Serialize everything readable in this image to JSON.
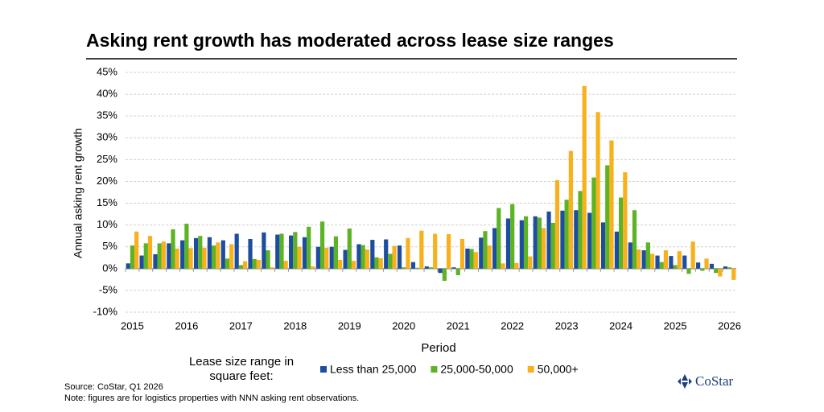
{
  "chart_data": {
    "type": "bar",
    "title": "Asking rent growth has moderated across lease size ranges",
    "y_label": "Annual asking rent growth",
    "x_label": "Period",
    "legend_title": [
      "Lease size range in",
      "square feet:"
    ],
    "source": "Source: CoStar, Q1 2026",
    "note": "Note: figures are for logistics properties with NNN asking rent observations.",
    "logo": "CoStar",
    "categories": [
      "2015",
      null,
      null,
      null,
      "2016",
      null,
      null,
      null,
      "2017",
      null,
      null,
      null,
      "2018",
      null,
      null,
      null,
      "2019",
      null,
      null,
      null,
      "2020",
      null,
      null,
      null,
      "2021",
      null,
      null,
      null,
      "2022",
      null,
      null,
      null,
      "2023",
      null,
      null,
      null,
      "2024",
      null,
      null,
      null,
      "2025",
      null,
      null,
      null,
      "2026"
    ],
    "series": [
      {
        "name": "Less than 25,000",
        "color": "#1d4d9e",
        "values": [
          1.2,
          3,
          3.3,
          5.8,
          6.5,
          7,
          7.2,
          6.5,
          8,
          6.8,
          8.3,
          7.8,
          7.6,
          7.2,
          5,
          5,
          4.3,
          5.6,
          6.6,
          6.7,
          5.3,
          1.5,
          0.5,
          -1,
          0.3,
          4.6,
          7.1,
          9.3,
          11.5,
          11.1,
          12,
          13.1,
          13.3,
          13.4,
          12.8,
          10.6,
          8.5,
          6,
          4.2,
          3,
          2.9,
          3,
          1.4,
          1.1,
          0.5
        ]
      },
      {
        "name": "25,000-50,000",
        "color": "#5cb324",
        "values": [
          5.3,
          5.8,
          5.8,
          9,
          10.3,
          7.5,
          5.3,
          2.3,
          0.8,
          2.2,
          4.2,
          8,
          8.4,
          9.6,
          10.8,
          7.4,
          9.2,
          5.4,
          2.6,
          3.4,
          0.3,
          0.2,
          0.3,
          -2.8,
          -1.5,
          4.5,
          8.6,
          13.9,
          14.8,
          12,
          11.7,
          10.5,
          15.8,
          17.8,
          20.9,
          23.7,
          16.3,
          13.4,
          6,
          1.5,
          0.8,
          -1.2,
          -0.5,
          -1,
          0.3
        ]
      },
      {
        "name": "50,000+",
        "color": "#f8b11c",
        "values": [
          8.5,
          7.5,
          6.2,
          4.6,
          4.7,
          4.8,
          6,
          5.6,
          1.7,
          2,
          0.3,
          1.8,
          5,
          0.5,
          4.8,
          2,
          1.8,
          4.4,
          2.4,
          5.2,
          7,
          8.7,
          8,
          7.9,
          6.8,
          3.8,
          5.3,
          1.2,
          1.3,
          2.8,
          9.3,
          20.3,
          27,
          41.9,
          35.9,
          29.4,
          22.1,
          4.4,
          3.4,
          4.2,
          4,
          6.2,
          2.3,
          -1.8,
          -2.6
        ]
      }
    ],
    "ylim": [
      -10,
      45
    ],
    "yticks": [
      {
        "value": -10,
        "label": "-10%"
      },
      {
        "value": -5,
        "label": "-5%"
      },
      {
        "value": 0,
        "label": "0%"
      },
      {
        "value": 5,
        "label": "5%"
      },
      {
        "value": 10,
        "label": "10%"
      },
      {
        "value": 15,
        "label": "15%"
      },
      {
        "value": 20,
        "label": "20%"
      },
      {
        "value": 25,
        "label": "25%"
      },
      {
        "value": 30,
        "label": "30%"
      },
      {
        "value": 35,
        "label": "35%"
      },
      {
        "value": 40,
        "label": "40%"
      },
      {
        "value": 45,
        "label": "45%"
      }
    ],
    "grid": true
  }
}
